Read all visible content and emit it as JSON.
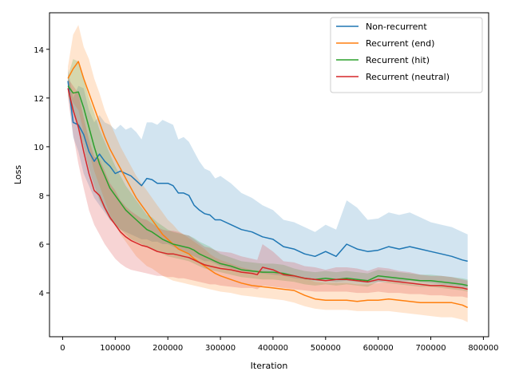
{
  "chart_data": {
    "type": "line",
    "title": "",
    "xlabel": "Iteration",
    "ylabel": "Loss",
    "xlim": [
      -25000,
      810000
    ],
    "ylim": [
      2.2,
      15.5
    ],
    "xticks": [
      0,
      100000,
      200000,
      300000,
      400000,
      500000,
      600000,
      700000,
      800000
    ],
    "xtick_labels": [
      "0",
      "100000",
      "200000",
      "300000",
      "400000",
      "500000",
      "600000",
      "700000",
      "800000"
    ],
    "yticks": [
      4,
      6,
      8,
      10,
      12,
      14
    ],
    "ytick_labels": [
      "4",
      "6",
      "8",
      "10",
      "12",
      "14"
    ],
    "grid": false,
    "legend_position": "top-right",
    "series": [
      {
        "name": "Non-recurrent",
        "color": "#1f77b4",
        "x": [
          10000,
          20000,
          30000,
          40000,
          50000,
          60000,
          70000,
          80000,
          90000,
          100000,
          110000,
          120000,
          130000,
          140000,
          150000,
          160000,
          170000,
          180000,
          190000,
          200000,
          210000,
          220000,
          230000,
          240000,
          250000,
          260000,
          270000,
          280000,
          290000,
          300000,
          320000,
          340000,
          360000,
          380000,
          400000,
          420000,
          440000,
          460000,
          480000,
          500000,
          520000,
          540000,
          560000,
          580000,
          600000,
          620000,
          640000,
          660000,
          680000,
          700000,
          720000,
          740000,
          760000,
          770000
        ],
        "y": [
          12.7,
          11.0,
          10.9,
          10.5,
          9.8,
          9.4,
          9.7,
          9.4,
          9.2,
          8.9,
          9.0,
          8.9,
          8.8,
          8.6,
          8.4,
          8.7,
          8.65,
          8.5,
          8.5,
          8.5,
          8.4,
          8.1,
          8.1,
          8.0,
          7.6,
          7.4,
          7.25,
          7.2,
          7.0,
          7.0,
          6.8,
          6.6,
          6.5,
          6.3,
          6.2,
          5.9,
          5.8,
          5.6,
          5.5,
          5.7,
          5.5,
          6.0,
          5.8,
          5.7,
          5.75,
          5.9,
          5.8,
          5.9,
          5.8,
          5.7,
          5.6,
          5.5,
          5.35,
          5.3
        ],
        "lower": [
          12.3,
          10.4,
          9.8,
          8.9,
          8.4,
          7.9,
          7.6,
          7.3,
          7.0,
          6.8,
          6.6,
          6.5,
          6.4,
          6.3,
          6.2,
          6.2,
          6.1,
          6.1,
          6.0,
          6.0,
          5.9,
          5.8,
          5.7,
          5.6,
          5.5,
          5.4,
          5.3,
          5.3,
          5.2,
          5.1,
          5.0,
          4.9,
          4.85,
          4.8,
          4.75,
          4.7,
          4.6,
          4.55,
          4.5,
          4.5,
          4.45,
          4.5,
          4.45,
          4.4,
          4.45,
          4.5,
          4.45,
          4.5,
          4.45,
          4.4,
          4.35,
          4.3,
          4.25,
          4.2
        ],
        "upper": [
          13.2,
          12.0,
          12.5,
          12.4,
          11.5,
          11.0,
          11.3,
          11.0,
          10.9,
          10.7,
          10.9,
          10.7,
          10.8,
          10.6,
          10.3,
          11.0,
          11.0,
          10.9,
          11.1,
          11.0,
          10.9,
          10.3,
          10.4,
          10.2,
          9.8,
          9.4,
          9.1,
          9.0,
          8.7,
          8.8,
          8.5,
          8.1,
          7.9,
          7.6,
          7.4,
          7.0,
          6.9,
          6.7,
          6.5,
          6.8,
          6.6,
          7.8,
          7.5,
          7.0,
          7.05,
          7.3,
          7.2,
          7.3,
          7.1,
          6.9,
          6.8,
          6.7,
          6.5,
          6.4
        ]
      },
      {
        "name": "Recurrent (end)",
        "color": "#ff7f0e",
        "x": [
          10000,
          20000,
          30000,
          40000,
          50000,
          60000,
          70000,
          80000,
          90000,
          100000,
          110000,
          120000,
          130000,
          140000,
          150000,
          160000,
          170000,
          180000,
          190000,
          200000,
          210000,
          220000,
          230000,
          240000,
          250000,
          260000,
          270000,
          280000,
          290000,
          300000,
          320000,
          340000,
          360000,
          380000,
          400000,
          420000,
          440000,
          460000,
          480000,
          500000,
          520000,
          540000,
          560000,
          580000,
          600000,
          620000,
          640000,
          660000,
          680000,
          700000,
          720000,
          740000,
          760000,
          770000
        ],
        "y": [
          12.8,
          13.2,
          13.5,
          12.8,
          12.2,
          11.6,
          11.0,
          10.4,
          9.9,
          9.5,
          9.1,
          8.7,
          8.3,
          7.9,
          7.6,
          7.3,
          7.0,
          6.7,
          6.4,
          6.2,
          6.0,
          5.8,
          5.7,
          5.6,
          5.4,
          5.25,
          5.1,
          4.95,
          4.8,
          4.7,
          4.55,
          4.4,
          4.3,
          4.25,
          4.2,
          4.15,
          4.1,
          3.9,
          3.75,
          3.7,
          3.7,
          3.7,
          3.65,
          3.7,
          3.7,
          3.75,
          3.7,
          3.65,
          3.6,
          3.6,
          3.6,
          3.6,
          3.5,
          3.4
        ],
        "lower": [
          12.3,
          11.8,
          11.5,
          10.6,
          9.8,
          9.0,
          8.4,
          7.8,
          7.2,
          6.8,
          6.4,
          6.1,
          5.8,
          5.5,
          5.3,
          5.1,
          5.0,
          4.85,
          4.7,
          4.6,
          4.5,
          4.45,
          4.4,
          4.35,
          4.3,
          4.25,
          4.2,
          4.15,
          4.1,
          4.05,
          4.0,
          3.9,
          3.85,
          3.8,
          3.75,
          3.7,
          3.6,
          3.45,
          3.35,
          3.3,
          3.3,
          3.3,
          3.25,
          3.25,
          3.25,
          3.25,
          3.2,
          3.15,
          3.1,
          3.05,
          3.0,
          3.0,
          2.9,
          2.8
        ],
        "upper": [
          13.3,
          14.6,
          15.0,
          14.1,
          13.6,
          12.8,
          12.2,
          11.5,
          11.0,
          10.5,
          10.0,
          9.6,
          9.2,
          8.8,
          8.5,
          8.2,
          7.9,
          7.6,
          7.3,
          7.0,
          6.8,
          6.55,
          6.4,
          6.25,
          6.1,
          5.95,
          5.8,
          5.6,
          5.45,
          5.35,
          5.2,
          5.05,
          4.95,
          4.9,
          4.85,
          4.8,
          4.75,
          4.6,
          4.45,
          4.4,
          4.4,
          4.4,
          4.35,
          4.35,
          4.4,
          4.45,
          4.4,
          4.35,
          4.3,
          4.3,
          4.3,
          4.25,
          4.15,
          4.1
        ]
      },
      {
        "name": "Recurrent (hit)",
        "color": "#2ca02c",
        "x": [
          10000,
          20000,
          30000,
          40000,
          50000,
          60000,
          70000,
          80000,
          90000,
          100000,
          110000,
          120000,
          130000,
          140000,
          150000,
          160000,
          170000,
          180000,
          190000,
          200000,
          210000,
          220000,
          230000,
          240000,
          250000,
          260000,
          270000,
          280000,
          290000,
          300000,
          320000,
          340000,
          360000,
          380000,
          400000,
          420000,
          440000,
          460000,
          480000,
          500000,
          520000,
          540000,
          560000,
          580000,
          600000,
          620000,
          640000,
          660000,
          680000,
          700000,
          720000,
          740000,
          760000,
          770000
        ],
        "y": [
          12.5,
          12.2,
          12.25,
          11.6,
          10.8,
          10.0,
          9.3,
          8.8,
          8.3,
          8.0,
          7.7,
          7.4,
          7.2,
          7.0,
          6.8,
          6.6,
          6.5,
          6.35,
          6.2,
          6.1,
          6.0,
          5.95,
          5.9,
          5.85,
          5.75,
          5.6,
          5.5,
          5.4,
          5.3,
          5.2,
          5.1,
          4.95,
          4.9,
          4.85,
          4.85,
          4.8,
          4.7,
          4.6,
          4.55,
          4.6,
          4.55,
          4.6,
          4.55,
          4.5,
          4.7,
          4.65,
          4.6,
          4.55,
          4.5,
          4.5,
          4.45,
          4.4,
          4.35,
          4.3
        ],
        "lower": [
          12.1,
          11.5,
          10.8,
          10.0,
          9.1,
          8.4,
          7.8,
          7.4,
          7.0,
          6.8,
          6.6,
          6.4,
          6.2,
          6.1,
          6.0,
          5.9,
          5.8,
          5.7,
          5.6,
          5.5,
          5.45,
          5.4,
          5.35,
          5.3,
          5.2,
          5.1,
          5.0,
          4.95,
          4.9,
          4.85,
          4.75,
          4.65,
          4.6,
          4.55,
          4.55,
          4.5,
          4.45,
          4.35,
          4.3,
          4.35,
          4.3,
          4.35,
          4.3,
          4.25,
          4.45,
          4.4,
          4.35,
          4.3,
          4.25,
          4.25,
          4.2,
          4.15,
          4.1,
          4.05
        ],
        "upper": [
          12.9,
          13.6,
          13.5,
          12.8,
          12.0,
          11.4,
          10.7,
          10.2,
          9.7,
          9.2,
          8.8,
          8.4,
          8.1,
          7.8,
          7.5,
          7.2,
          7.1,
          6.9,
          6.75,
          6.6,
          6.5,
          6.45,
          6.4,
          6.35,
          6.25,
          6.1,
          6.0,
          5.9,
          5.75,
          5.6,
          5.45,
          5.3,
          5.25,
          5.2,
          5.2,
          5.15,
          5.0,
          4.9,
          4.85,
          4.9,
          4.85,
          4.9,
          4.85,
          4.8,
          4.95,
          4.9,
          4.85,
          4.8,
          4.75,
          4.75,
          4.7,
          4.65,
          4.6,
          4.55
        ]
      },
      {
        "name": "Recurrent (neutral)",
        "color": "#d62728",
        "x": [
          10000,
          20000,
          30000,
          40000,
          50000,
          60000,
          70000,
          80000,
          90000,
          100000,
          110000,
          120000,
          130000,
          140000,
          150000,
          160000,
          170000,
          180000,
          190000,
          200000,
          210000,
          220000,
          230000,
          240000,
          250000,
          260000,
          270000,
          280000,
          290000,
          300000,
          320000,
          340000,
          360000,
          370000,
          380000,
          400000,
          420000,
          440000,
          460000,
          480000,
          500000,
          520000,
          540000,
          560000,
          580000,
          600000,
          620000,
          640000,
          660000,
          680000,
          700000,
          720000,
          740000,
          760000,
          770000
        ],
        "y": [
          12.4,
          11.5,
          10.8,
          9.8,
          8.9,
          8.2,
          8.0,
          7.5,
          7.1,
          6.8,
          6.5,
          6.3,
          6.15,
          6.05,
          5.95,
          5.9,
          5.8,
          5.7,
          5.65,
          5.6,
          5.6,
          5.55,
          5.5,
          5.45,
          5.35,
          5.25,
          5.15,
          5.1,
          5.05,
          5.0,
          4.95,
          4.85,
          4.8,
          4.75,
          5.05,
          4.95,
          4.75,
          4.7,
          4.6,
          4.55,
          4.5,
          4.55,
          4.55,
          4.5,
          4.45,
          4.55,
          4.5,
          4.45,
          4.4,
          4.35,
          4.3,
          4.3,
          4.25,
          4.2,
          4.15
        ],
        "lower": [
          12.0,
          10.5,
          9.3,
          8.3,
          7.4,
          6.8,
          6.4,
          6.0,
          5.7,
          5.4,
          5.2,
          5.05,
          4.95,
          4.9,
          4.85,
          4.8,
          4.75,
          4.7,
          4.7,
          4.65,
          4.65,
          4.6,
          4.6,
          4.55,
          4.5,
          4.45,
          4.4,
          4.35,
          4.35,
          4.3,
          4.25,
          4.2,
          4.2,
          4.15,
          4.3,
          4.25,
          4.2,
          4.15,
          4.1,
          4.05,
          4.05,
          4.05,
          4.05,
          4.0,
          4.0,
          4.05,
          4.0,
          4.0,
          3.95,
          3.95,
          3.9,
          3.9,
          3.85,
          3.85,
          3.8
        ],
        "upper": [
          12.8,
          12.5,
          12.2,
          11.2,
          10.3,
          9.6,
          9.5,
          9.0,
          8.5,
          8.2,
          7.8,
          7.55,
          7.35,
          7.2,
          7.05,
          7.0,
          6.85,
          6.7,
          6.6,
          6.55,
          6.55,
          6.5,
          6.4,
          6.35,
          6.2,
          6.05,
          5.9,
          5.85,
          5.75,
          5.7,
          5.65,
          5.5,
          5.4,
          5.35,
          6.0,
          5.7,
          5.3,
          5.25,
          5.1,
          5.05,
          4.95,
          5.05,
          5.05,
          5.0,
          4.9,
          5.05,
          5.0,
          4.9,
          4.85,
          4.75,
          4.7,
          4.7,
          4.65,
          4.55,
          4.5
        ]
      }
    ]
  }
}
